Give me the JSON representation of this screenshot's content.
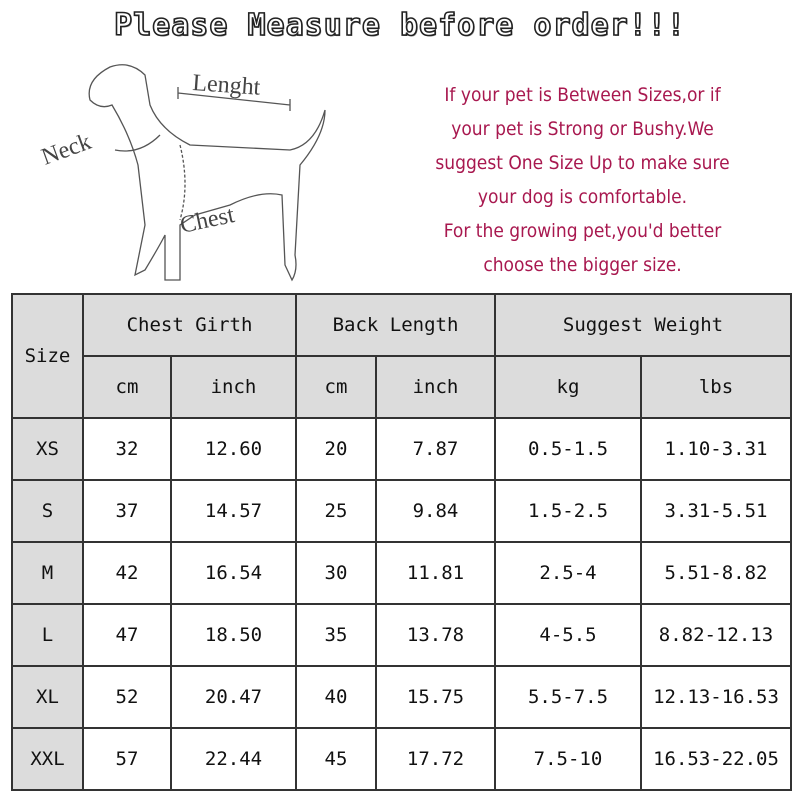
{
  "title": "Please Measure before order!!!",
  "diagram": {
    "labels": {
      "length": "Lenght",
      "neck": "Neck",
      "chest": "Chest"
    }
  },
  "note_lines": [
    "If your pet is Between Sizes,or if",
    "your pet is Strong or Bushy.We",
    "suggest One Size Up to make sure",
    "your dog is comfortable.",
    "For the growing pet,you'd better",
    "choose the bigger size."
  ],
  "colors": {
    "note": "#a8184f",
    "header_bg": "#dcdcdc"
  },
  "table": {
    "size_header": "Size",
    "groups": [
      "Chest Girth",
      "Back Length",
      "Suggest Weight"
    ],
    "units": [
      "cm",
      "inch",
      "cm",
      "inch",
      "kg",
      "lbs"
    ],
    "rows": [
      [
        "XS",
        "32",
        "12.60",
        "20",
        "7.87",
        "0.5-1.5",
        "1.10-3.31"
      ],
      [
        "S",
        "37",
        "14.57",
        "25",
        "9.84",
        "1.5-2.5",
        "3.31-5.51"
      ],
      [
        "M",
        "42",
        "16.54",
        "30",
        "11.81",
        "2.5-4",
        "5.51-8.82"
      ],
      [
        "L",
        "47",
        "18.50",
        "35",
        "13.78",
        "4-5.5",
        "8.82-12.13"
      ],
      [
        "XL",
        "52",
        "20.47",
        "40",
        "15.75",
        "5.5-7.5",
        "12.13-16.53"
      ],
      [
        "XXL",
        "57",
        "22.44",
        "45",
        "17.72",
        "7.5-10",
        "16.53-22.05"
      ]
    ]
  }
}
